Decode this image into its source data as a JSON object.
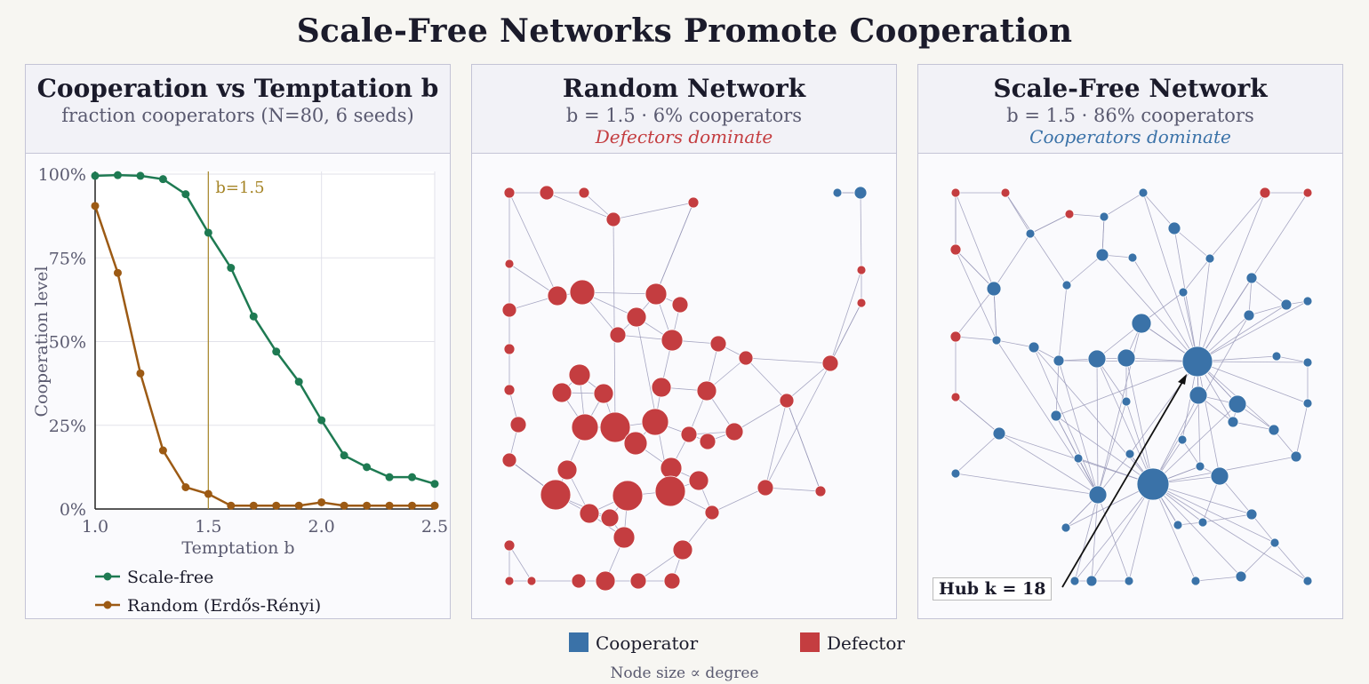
{
  "title": "Scale-Free Networks Promote Cooperation",
  "colors": {
    "cooperator": "#3a72a8",
    "defector": "#c43d40",
    "scale_free": "#1e7a52",
    "random": "#9c5a14",
    "marker": "#a68527",
    "edge": "#9898b8"
  },
  "panels": {
    "chart": {
      "title": "Cooperation vs Temptation b",
      "subtitle": "fraction cooperators  (N=80, 6 seeds)"
    },
    "random": {
      "title": "Random Network",
      "subtitle": "b = 1.5  ·  6% cooperators",
      "note": "Defectors dominate"
    },
    "scalefree": {
      "title": "Scale-Free Network",
      "subtitle": "b = 1.5  ·  86% cooperators",
      "note": "Cooperators dominate",
      "hub_label": "Hub  k = 18"
    }
  },
  "chart_data": {
    "type": "line",
    "x": [
      1.0,
      1.1,
      1.2,
      1.3,
      1.4,
      1.5,
      1.6,
      1.7,
      1.8,
      1.9,
      2.0,
      2.1,
      2.2,
      2.3,
      2.4,
      2.5
    ],
    "series": [
      {
        "name": "Scale-free",
        "values": [
          99.5,
          99.7,
          99.5,
          98.5,
          94,
          82.5,
          72,
          57.5,
          47,
          38,
          26.5,
          16,
          12.5,
          9.5,
          9.5,
          7.5
        ]
      },
      {
        "name": "Random (Erdős-Rényi)",
        "values": [
          90.5,
          70.5,
          40.5,
          17.5,
          6.5,
          4.5,
          1,
          1,
          1,
          1,
          2,
          1,
          1,
          1,
          1,
          1
        ]
      }
    ],
    "xlabel": "Temptation  b",
    "ylabel": "Cooperation level",
    "xlim": [
      1.0,
      2.5
    ],
    "ylim": [
      0,
      100
    ],
    "xticks": [
      "1.0",
      "1.5",
      "2.0",
      "2.5"
    ],
    "yticks": [
      "0%",
      "25%",
      "50%",
      "75%",
      "100%"
    ],
    "marker": {
      "x": 1.5,
      "label": "b=1.5"
    },
    "legend": [
      "Scale-free",
      "Random (Erdős-Rényi)"
    ]
  },
  "legend": {
    "cooperator": "Cooperator",
    "defector": "Defector",
    "caption": "Node size ∝ degree"
  }
}
